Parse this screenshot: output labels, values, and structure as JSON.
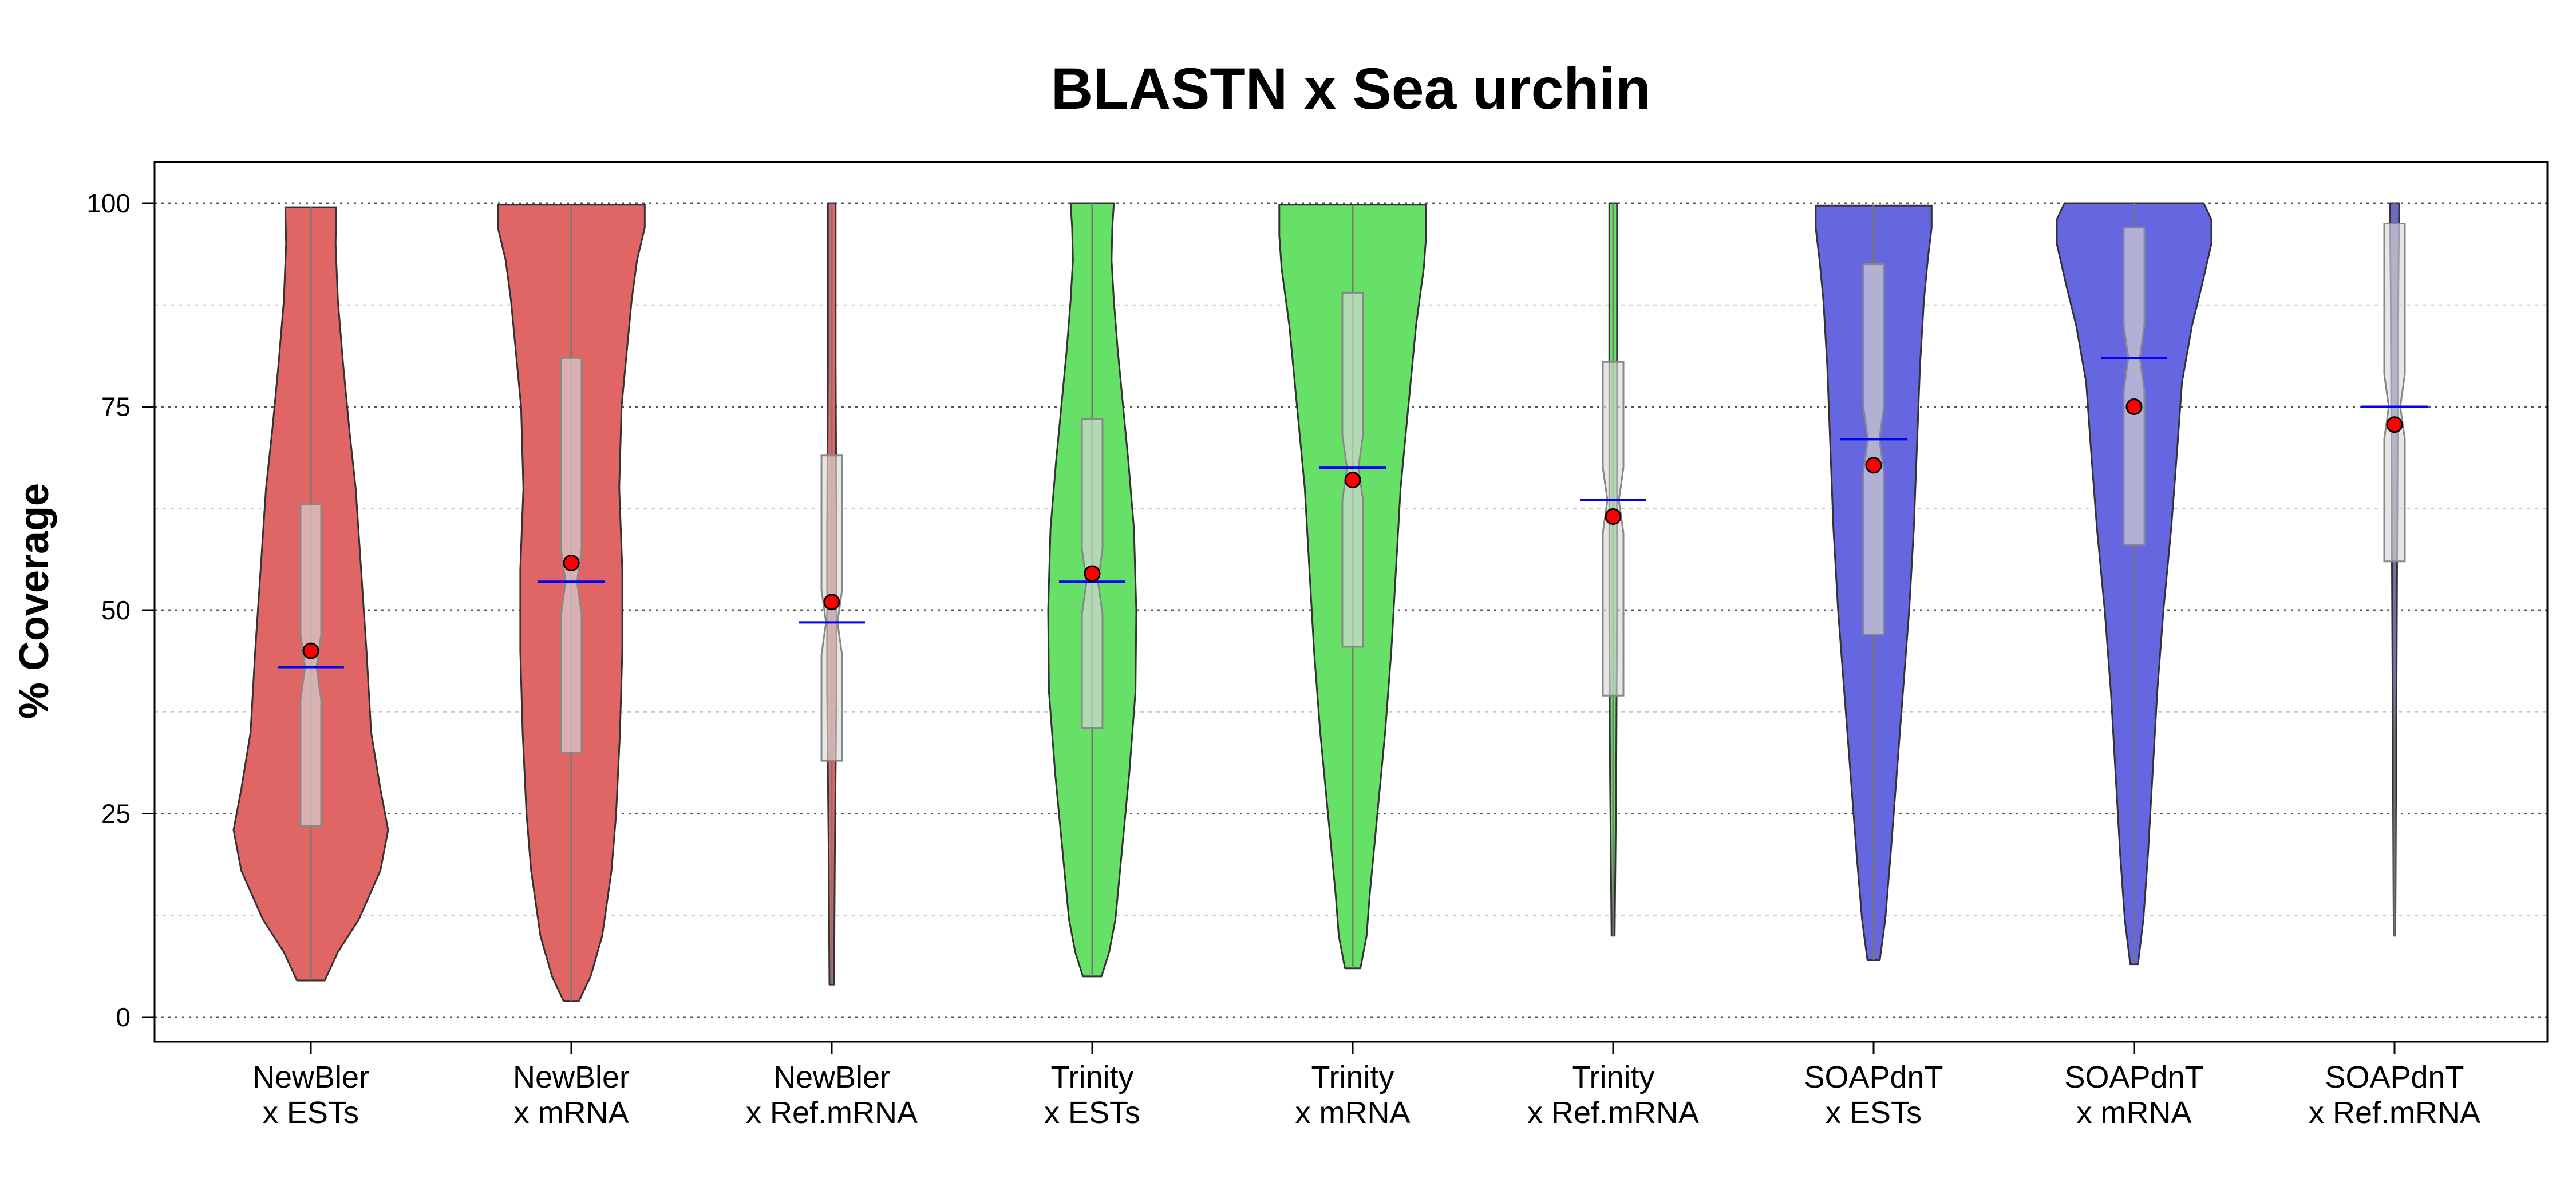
{
  "chart_data": {
    "type": "violin",
    "title": "BLASTN x Sea urchin",
    "ylabel": "% Coverage",
    "xlabel": "",
    "ylim": [
      0,
      100
    ],
    "yticks": [
      0,
      25,
      50,
      75,
      100
    ],
    "grid": "dotted",
    "categories": [
      {
        "line1": "NewBler",
        "line2": "x ESTs"
      },
      {
        "line1": "NewBler",
        "line2": "x mRNA"
      },
      {
        "line1": "NewBler",
        "line2": "x Ref.mRNA"
      },
      {
        "line1": "Trinity",
        "line2": "x ESTs"
      },
      {
        "line1": "Trinity",
        "line2": "x mRNA"
      },
      {
        "line1": "Trinity",
        "line2": "x Ref.mRNA"
      },
      {
        "line1": "SOAPdnT",
        "line2": "x ESTs"
      },
      {
        "line1": "SOAPdnT",
        "line2": "x mRNA"
      },
      {
        "line1": "SOAPdnT",
        "line2": "x Ref.mRNA"
      }
    ],
    "colors": {
      "NewBler": "#e06666",
      "Trinity": "#66e066",
      "SOAPdnT": "#6666e0",
      "box": "#d9d9d9",
      "median_line": "#0000ff",
      "mean_point": "#ff0000"
    },
    "series": [
      {
        "group": "NewBler",
        "min": 4.5,
        "max": 99.5,
        "q1": 23.5,
        "q3": 63.0,
        "median": 43.0,
        "mean": 45.0,
        "density": [
          [
            4.5,
            0.18
          ],
          [
            8,
            0.35
          ],
          [
            12,
            0.62
          ],
          [
            18,
            0.9
          ],
          [
            23,
            1.0
          ],
          [
            28,
            0.9
          ],
          [
            35,
            0.78
          ],
          [
            45,
            0.72
          ],
          [
            55,
            0.65
          ],
          [
            65,
            0.58
          ],
          [
            72,
            0.5
          ],
          [
            80,
            0.42
          ],
          [
            88,
            0.35
          ],
          [
            95,
            0.32
          ],
          [
            99.5,
            0.33
          ]
        ]
      },
      {
        "group": "NewBler",
        "min": 2.0,
        "max": 99.8,
        "q1": 32.5,
        "q3": 81.0,
        "median": 53.5,
        "mean": 55.8,
        "density": [
          [
            2,
            0.1
          ],
          [
            5,
            0.25
          ],
          [
            10,
            0.4
          ],
          [
            18,
            0.52
          ],
          [
            25,
            0.58
          ],
          [
            35,
            0.63
          ],
          [
            45,
            0.66
          ],
          [
            55,
            0.66
          ],
          [
            65,
            0.62
          ],
          [
            75,
            0.65
          ],
          [
            82,
            0.72
          ],
          [
            88,
            0.78
          ],
          [
            93,
            0.85
          ],
          [
            97,
            0.95
          ],
          [
            99.8,
            0.95
          ]
        ]
      },
      {
        "group": "NewBler",
        "min": 4.0,
        "max": 100,
        "q1": 31.5,
        "q3": 69.0,
        "median": 48.5,
        "mean": 51.0,
        "density": [
          [
            4,
            0.03
          ],
          [
            20,
            0.04
          ],
          [
            40,
            0.06
          ],
          [
            60,
            0.06
          ],
          [
            80,
            0.05
          ],
          [
            100,
            0.05
          ]
        ]
      },
      {
        "group": "Trinity",
        "min": 5.0,
        "max": 100,
        "q1": 35.5,
        "q3": 73.5,
        "median": 53.5,
        "mean": 54.5,
        "density": [
          [
            5,
            0.12
          ],
          [
            8,
            0.22
          ],
          [
            12,
            0.3
          ],
          [
            20,
            0.38
          ],
          [
            30,
            0.48
          ],
          [
            40,
            0.56
          ],
          [
            50,
            0.57
          ],
          [
            60,
            0.54
          ],
          [
            68,
            0.47
          ],
          [
            75,
            0.4
          ],
          [
            82,
            0.33
          ],
          [
            88,
            0.28
          ],
          [
            93,
            0.25
          ],
          [
            97,
            0.26
          ],
          [
            100,
            0.28
          ]
        ]
      },
      {
        "group": "Trinity",
        "min": 6.0,
        "max": 99.8,
        "q1": 45.5,
        "q3": 89.0,
        "median": 67.5,
        "mean": 66.0,
        "density": [
          [
            6,
            0.1
          ],
          [
            10,
            0.18
          ],
          [
            15,
            0.22
          ],
          [
            25,
            0.32
          ],
          [
            35,
            0.42
          ],
          [
            45,
            0.5
          ],
          [
            55,
            0.56
          ],
          [
            65,
            0.62
          ],
          [
            75,
            0.72
          ],
          [
            85,
            0.82
          ],
          [
            92,
            0.92
          ],
          [
            96,
            0.95
          ],
          [
            99.8,
            0.95
          ]
        ]
      },
      {
        "group": "Trinity",
        "min": 10.0,
        "max": 100,
        "q1": 39.5,
        "q3": 80.5,
        "median": 63.5,
        "mean": 61.5,
        "density": [
          [
            10,
            0.02
          ],
          [
            30,
            0.04
          ],
          [
            50,
            0.05
          ],
          [
            70,
            0.05
          ],
          [
            85,
            0.05
          ],
          [
            100,
            0.05
          ]
        ]
      },
      {
        "group": "SOAPdnT",
        "min": 7.0,
        "max": 99.7,
        "q1": 47.0,
        "q3": 92.5,
        "median": 71.0,
        "mean": 67.8,
        "density": [
          [
            7,
            0.08
          ],
          [
            12,
            0.15
          ],
          [
            20,
            0.22
          ],
          [
            30,
            0.3
          ],
          [
            40,
            0.38
          ],
          [
            50,
            0.46
          ],
          [
            60,
            0.52
          ],
          [
            70,
            0.56
          ],
          [
            80,
            0.6
          ],
          [
            88,
            0.65
          ],
          [
            93,
            0.7
          ],
          [
            97,
            0.75
          ],
          [
            99.7,
            0.75
          ]
        ]
      },
      {
        "group": "SOAPdnT",
        "min": 6.5,
        "max": 100,
        "q1": 58.0,
        "q3": 97.0,
        "median": 81.0,
        "mean": 75.0,
        "density": [
          [
            6.5,
            0.05
          ],
          [
            12,
            0.12
          ],
          [
            20,
            0.18
          ],
          [
            30,
            0.24
          ],
          [
            40,
            0.3
          ],
          [
            50,
            0.38
          ],
          [
            60,
            0.48
          ],
          [
            70,
            0.56
          ],
          [
            78,
            0.62
          ],
          [
            85,
            0.75
          ],
          [
            90,
            0.88
          ],
          [
            95,
            1.0
          ],
          [
            98,
            1.0
          ],
          [
            100,
            0.9
          ]
        ]
      },
      {
        "group": "SOAPdnT",
        "min": 10.0,
        "max": 100,
        "q1": 56.0,
        "q3": 97.5,
        "median": 75.0,
        "mean": 72.8,
        "density": [
          [
            10,
            0.01
          ],
          [
            30,
            0.02
          ],
          [
            50,
            0.03
          ],
          [
            70,
            0.04
          ],
          [
            90,
            0.05
          ],
          [
            100,
            0.06
          ]
        ]
      }
    ]
  }
}
